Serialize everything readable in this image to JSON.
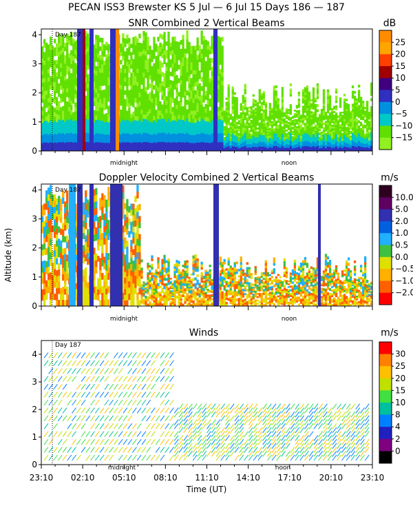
{
  "figure": {
    "title": "PECAN ISS3 Brewster KS    5 Jul —   6 Jul 15 Days 186 — 187",
    "ylabel": "Altitude (km)",
    "xlabel": "Time (UT)",
    "time_ticks": [
      "23:10",
      "02:10",
      "05:10",
      "08:10",
      "11:10",
      "14:10",
      "17:10",
      "20:10",
      "23:10"
    ],
    "markers": {
      "midnight": "midnight",
      "noon": "noon",
      "day": "Day 187"
    },
    "altitude_ticks": [
      "0",
      "1",
      "2",
      "3",
      "4"
    ]
  },
  "chart_data": [
    {
      "type": "heatmap",
      "title": "SNR Combined 2 Vertical Beams",
      "unit": "dB",
      "ylim": [
        0,
        4.2
      ],
      "xlabel": "",
      "ylabel": "Altitude (km)",
      "colorbar": {
        "labels": [
          "25",
          "20",
          "15",
          "10",
          "5",
          "0",
          "−5",
          "−10",
          "−15"
        ],
        "colors": [
          "#ff8c00",
          "#ffa500",
          "#ff4000",
          "#a00000",
          "#400080",
          "#3030c0",
          "#0090e0",
          "#00c8c8",
          "#60e000",
          "#90f020"
        ]
      }
    },
    {
      "type": "heatmap",
      "title": "Doppler Velocity Combined 2 Vertical Beams",
      "unit": "m/s",
      "ylim": [
        0,
        4.2
      ],
      "xlabel": "",
      "ylabel": "Altitude (km)",
      "colorbar": {
        "labels": [
          "10.0",
          "5.0",
          "2.0",
          "1.0",
          "0.5",
          "0.0",
          "−0.5",
          "−1.0",
          "−2.0"
        ],
        "colors": [
          "#300020",
          "#600060",
          "#3030b0",
          "#0060e0",
          "#20b0ff",
          "#40c040",
          "#e0e000",
          "#ffb000",
          "#ff6000",
          "#ff0000"
        ]
      }
    },
    {
      "type": "scatter",
      "title": "Winds",
      "unit": "m/s",
      "ylim": [
        0,
        4.5
      ],
      "xlabel": "Time (UT)",
      "ylabel": "Altitude (km)",
      "colorbar": {
        "labels": [
          "30",
          "25",
          "20",
          "15",
          "10",
          "8",
          "4",
          "2",
          "0"
        ],
        "colors": [
          "#ff0000",
          "#ff8000",
          "#ffc000",
          "#c0e000",
          "#40e040",
          "#00c0a0",
          "#0080ff",
          "#2020c0",
          "#800080",
          "#000000"
        ]
      }
    }
  ]
}
